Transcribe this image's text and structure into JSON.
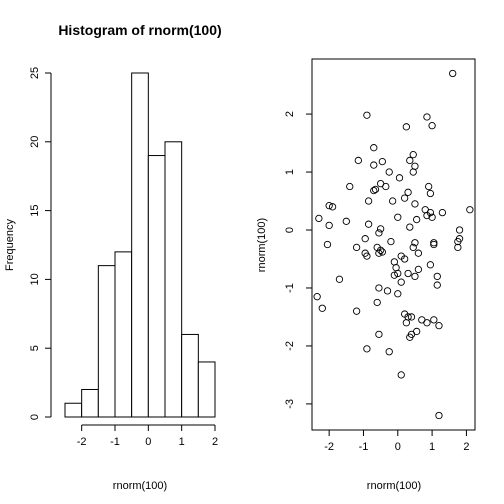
{
  "chart_data": [
    {
      "type": "bar",
      "title": "Histogram of rnorm(100)",
      "xlabel": "rnorm(100)",
      "ylabel": "Frequency",
      "bins": [
        {
          "from": -2.5,
          "to": -2.0,
          "count": 1
        },
        {
          "from": -2.0,
          "to": -1.5,
          "count": 2
        },
        {
          "from": -1.5,
          "to": -1.0,
          "count": 11
        },
        {
          "from": -1.0,
          "to": -0.5,
          "count": 12
        },
        {
          "from": -0.5,
          "to": 0.0,
          "count": 25
        },
        {
          "from": 0.0,
          "to": 0.5,
          "count": 19
        },
        {
          "from": 0.5,
          "to": 1.0,
          "count": 20
        },
        {
          "from": 1.0,
          "to": 1.5,
          "count": 6
        },
        {
          "from": 1.5,
          "to": 2.0,
          "count": 4
        }
      ],
      "xlim": [
        -2.5,
        2.0
      ],
      "ylim": [
        0,
        25
      ],
      "xticks": [
        "-2",
        "-1",
        "0",
        "1",
        "2"
      ],
      "xtick_values": [
        -2,
        -1,
        0,
        1,
        2
      ],
      "yticks": [
        "0",
        "5",
        "10",
        "15",
        "20",
        "25"
      ],
      "ytick_values": [
        0,
        5,
        10,
        15,
        20,
        25
      ],
      "grid": false
    },
    {
      "type": "scatter",
      "title": "",
      "xlabel": "rnorm(100)",
      "ylabel": "rnorm(100)",
      "xlim": [
        -2.5,
        2.25
      ],
      "ylim": [
        -3.45,
        2.95
      ],
      "xticks": [
        "-2",
        "-1",
        "0",
        "1",
        "2"
      ],
      "xtick_values": [
        -2,
        -1,
        0,
        1,
        2
      ],
      "yticks": [
        "-3",
        "-2",
        "-1",
        "0",
        "1",
        "2"
      ],
      "ytick_values": [
        -3,
        -2,
        -1,
        0,
        1,
        2
      ],
      "grid": false,
      "points": [
        [
          1.6,
          2.7
        ],
        [
          -0.9,
          1.98
        ],
        [
          0.85,
          1.95
        ],
        [
          1.0,
          1.8
        ],
        [
          0.25,
          1.78
        ],
        [
          -0.7,
          1.42
        ],
        [
          0.45,
          1.3
        ],
        [
          -1.15,
          1.2
        ],
        [
          0.35,
          1.2
        ],
        [
          -0.45,
          1.18
        ],
        [
          -0.7,
          1.12
        ],
        [
          0.5,
          1.1
        ],
        [
          0.45,
          1.0
        ],
        [
          -0.25,
          1.0
        ],
        [
          0.05,
          0.9
        ],
        [
          -1.4,
          0.75
        ],
        [
          -0.5,
          0.8
        ],
        [
          -0.35,
          0.75
        ],
        [
          0.9,
          0.75
        ],
        [
          -0.65,
          0.7
        ],
        [
          -0.7,
          0.68
        ],
        [
          0.3,
          0.65
        ],
        [
          0.95,
          0.63
        ],
        [
          0.2,
          0.55
        ],
        [
          -0.85,
          0.5
        ],
        [
          -0.15,
          0.5
        ],
        [
          0.5,
          0.45
        ],
        [
          -2.0,
          0.42
        ],
        [
          -1.9,
          0.4
        ],
        [
          0.8,
          0.35
        ],
        [
          2.1,
          0.35
        ],
        [
          0.95,
          0.3
        ],
        [
          1.3,
          0.3
        ],
        [
          0.85,
          0.25
        ],
        [
          0.0,
          0.22
        ],
        [
          1.0,
          0.22
        ],
        [
          -2.3,
          0.2
        ],
        [
          0.55,
          0.18
        ],
        [
          -1.5,
          0.15
        ],
        [
          -0.85,
          0.1
        ],
        [
          -2.0,
          0.08
        ],
        [
          0.35,
          0.05
        ],
        [
          -0.5,
          0.02
        ],
        [
          1.8,
          0.0
        ],
        [
          -0.55,
          -0.05
        ],
        [
          -0.95,
          -0.15
        ],
        [
          1.8,
          -0.15
        ],
        [
          -0.2,
          -0.2
        ],
        [
          1.75,
          -0.2
        ],
        [
          1.05,
          -0.22
        ],
        [
          0.5,
          -0.22
        ],
        [
          1.05,
          -0.25
        ],
        [
          -2.05,
          -0.25
        ],
        [
          -1.2,
          -0.3
        ],
        [
          -0.6,
          -0.3
        ],
        [
          1.75,
          -0.3
        ],
        [
          0.45,
          -0.3
        ],
        [
          -0.5,
          -0.35
        ],
        [
          -0.45,
          -0.38
        ],
        [
          -0.55,
          -0.4
        ],
        [
          -0.95,
          -0.4
        ],
        [
          0.6,
          -0.4
        ],
        [
          -0.9,
          -0.45
        ],
        [
          0.1,
          -0.45
        ],
        [
          0.2,
          -0.5
        ],
        [
          -0.1,
          -0.55
        ],
        [
          0.95,
          -0.6
        ],
        [
          -0.05,
          -0.65
        ],
        [
          0.6,
          -0.68
        ],
        [
          0.0,
          -0.75
        ],
        [
          0.3,
          -0.75
        ],
        [
          -0.1,
          -0.78
        ],
        [
          0.5,
          -0.8
        ],
        [
          1.15,
          -0.8
        ],
        [
          -1.7,
          -0.85
        ],
        [
          0.1,
          -0.9
        ],
        [
          1.15,
          -0.95
        ],
        [
          -0.55,
          -1.0
        ],
        [
          -0.3,
          -1.05
        ],
        [
          0.0,
          -1.1
        ],
        [
          -2.35,
          -1.15
        ],
        [
          -0.6,
          -1.25
        ],
        [
          -2.2,
          -1.35
        ],
        [
          -1.2,
          -1.4
        ],
        [
          0.2,
          -1.45
        ],
        [
          0.3,
          -1.5
        ],
        [
          0.4,
          -1.5
        ],
        [
          0.7,
          -1.55
        ],
        [
          1.05,
          -1.55
        ],
        [
          0.85,
          -1.6
        ],
        [
          0.25,
          -1.6
        ],
        [
          1.2,
          -1.65
        ],
        [
          -0.55,
          -1.8
        ],
        [
          0.4,
          -1.8
        ],
        [
          0.55,
          -1.75
        ],
        [
          0.35,
          -1.85
        ],
        [
          -0.9,
          -2.05
        ],
        [
          -0.25,
          -2.1
        ],
        [
          0.1,
          -2.5
        ],
        [
          1.2,
          -3.2
        ]
      ]
    }
  ]
}
